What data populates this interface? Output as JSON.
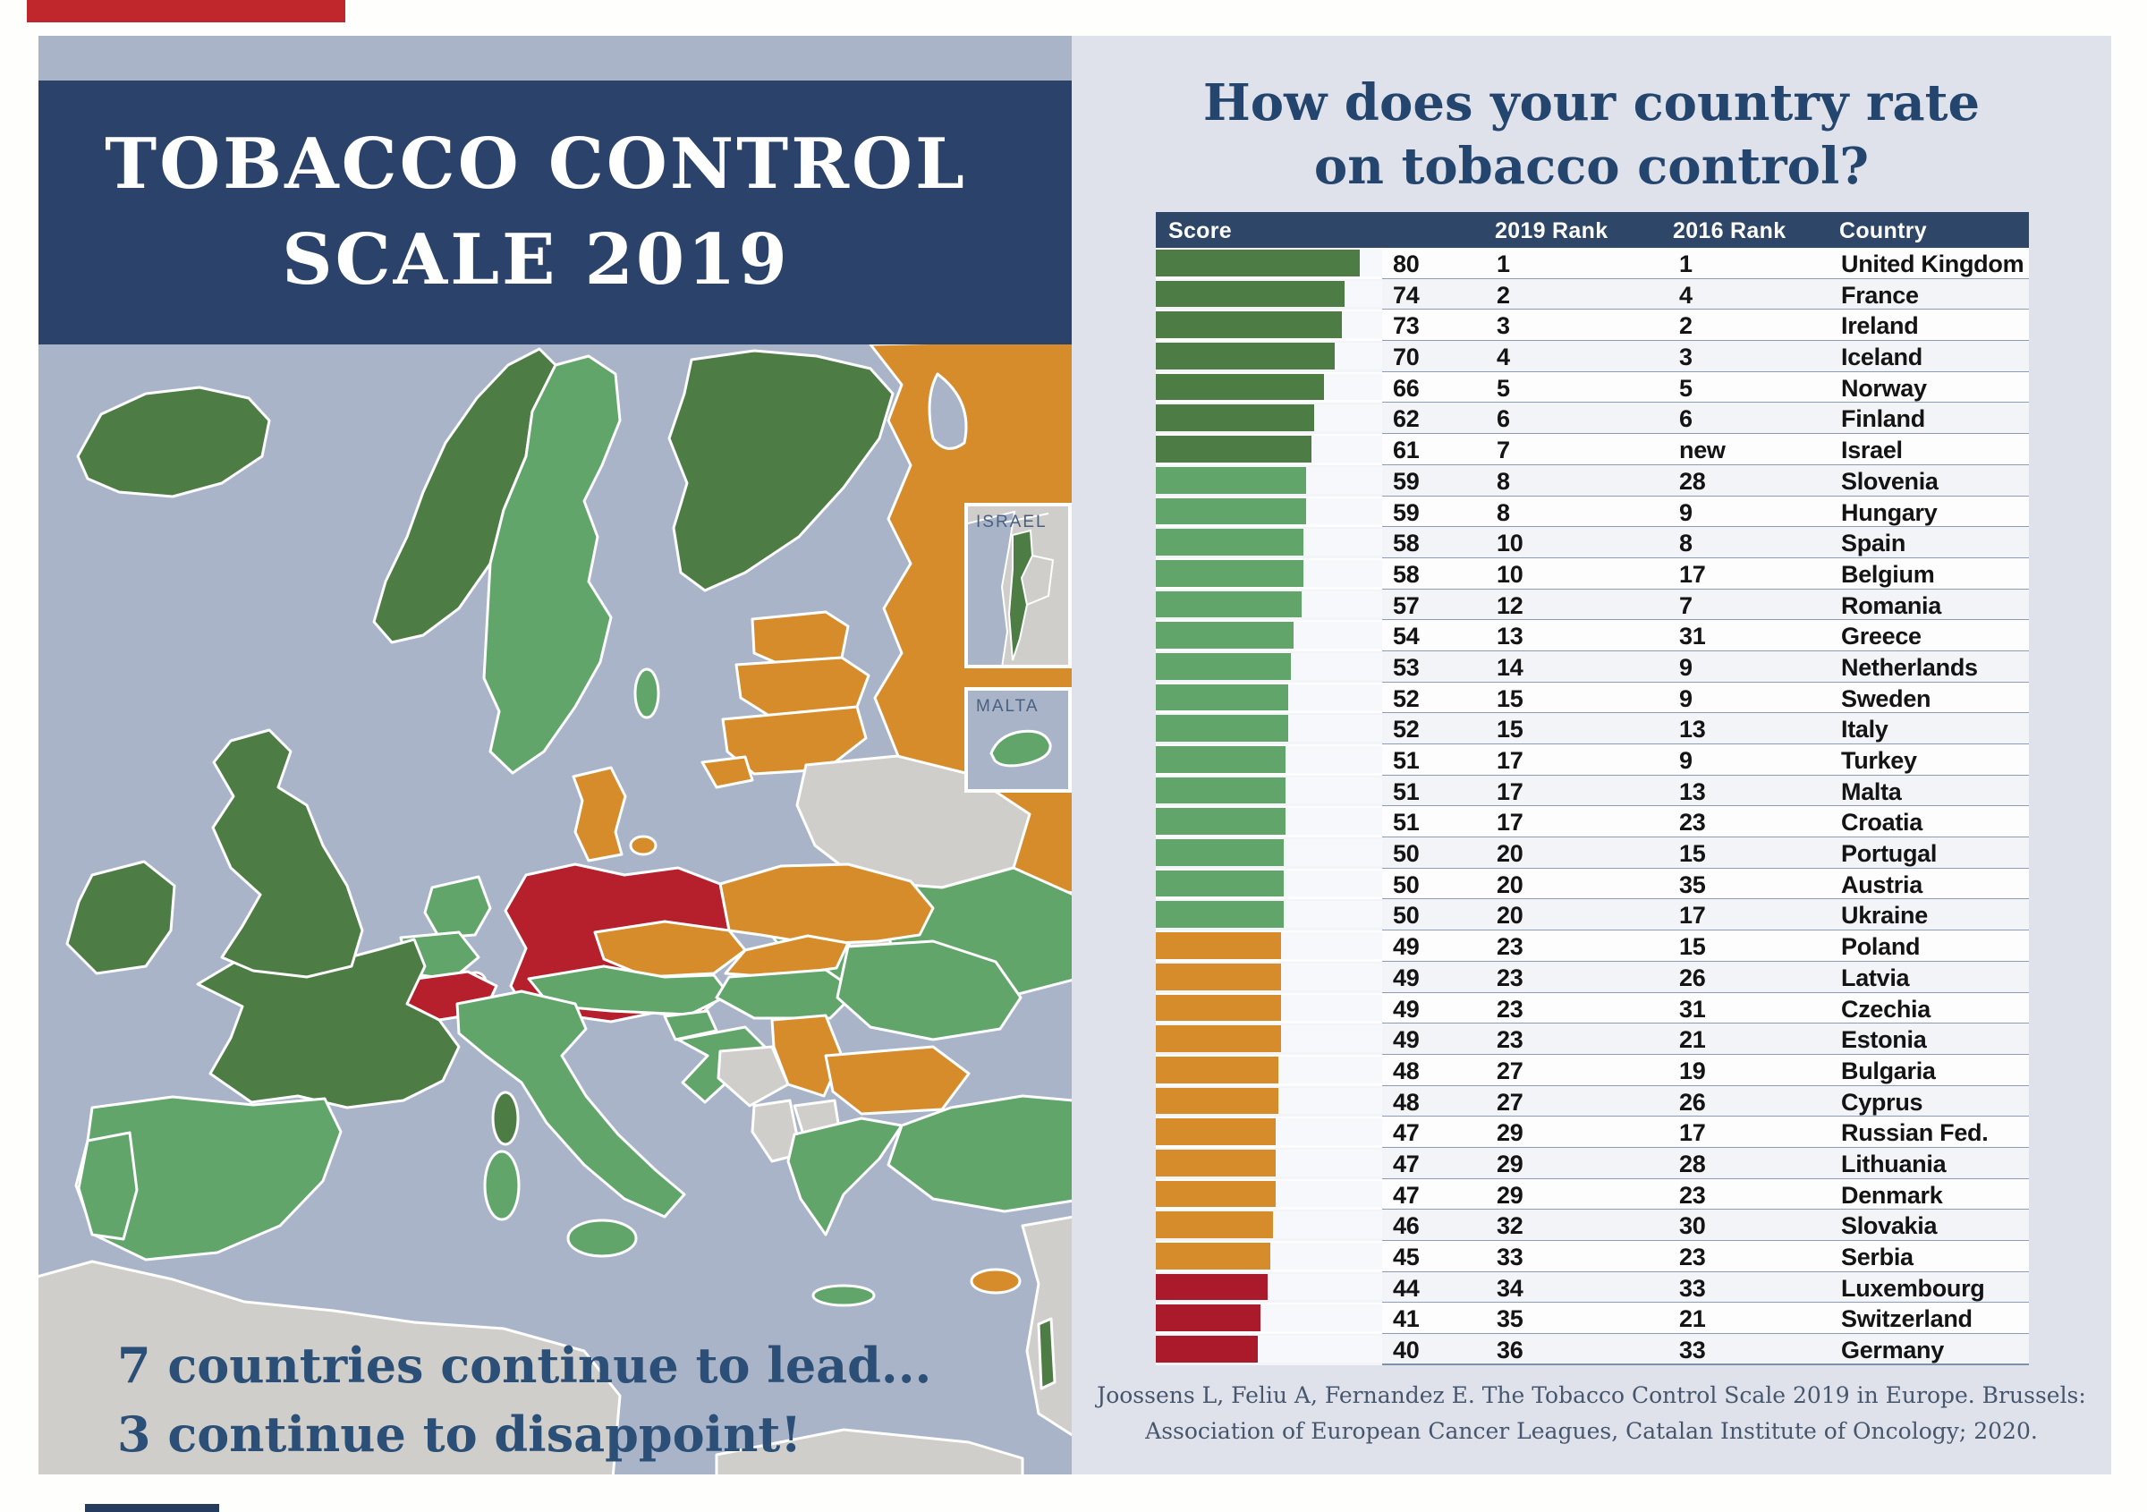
{
  "left_panel": {
    "banner_title_line1": "TOBACCO CONTROL",
    "banner_title_line2": "SCALE 2019",
    "tagline_line1": "7 countries continue to lead...",
    "tagline_line2": "3 continue to disappoint!",
    "inset_israel_label": "ISRAEL",
    "inset_malta_label": "MALTA"
  },
  "right_panel": {
    "title_line1": "How does your country rate",
    "title_line2": "on tobacco control?",
    "citation_line1": "Joossens L, Feliu A, Fernandez E. The Tobacco Control Scale 2019 in Europe. Brussels:",
    "citation_line2": "Association of European Cancer Leagues, Catalan Institute of Oncology; 2020."
  },
  "table": {
    "headers": [
      "Score",
      "2019 Rank",
      "2016 Rank",
      "Country"
    ],
    "rows": [
      {
        "score": 80,
        "rank2019": "1",
        "rank2016": "1",
        "country": "United Kingdom",
        "tier": "leader"
      },
      {
        "score": 74,
        "rank2019": "2",
        "rank2016": "4",
        "country": "France",
        "tier": "leader"
      },
      {
        "score": 73,
        "rank2019": "3",
        "rank2016": "2",
        "country": "Ireland",
        "tier": "leader"
      },
      {
        "score": 70,
        "rank2019": "4",
        "rank2016": "3",
        "country": "Iceland",
        "tier": "leader"
      },
      {
        "score": 66,
        "rank2019": "5",
        "rank2016": "5",
        "country": "Norway",
        "tier": "leader"
      },
      {
        "score": 62,
        "rank2019": "6",
        "rank2016": "6",
        "country": "Finland",
        "tier": "leader"
      },
      {
        "score": 61,
        "rank2019": "7",
        "rank2016": "new",
        "country": "Israel",
        "tier": "leader"
      },
      {
        "score": 59,
        "rank2019": "8",
        "rank2016": "28",
        "country": "Slovenia",
        "tier": "good"
      },
      {
        "score": 59,
        "rank2019": "8",
        "rank2016": "9",
        "country": "Hungary",
        "tier": "good"
      },
      {
        "score": 58,
        "rank2019": "10",
        "rank2016": "8",
        "country": "Spain",
        "tier": "good"
      },
      {
        "score": 58,
        "rank2019": "10",
        "rank2016": "17",
        "country": "Belgium",
        "tier": "good"
      },
      {
        "score": 57,
        "rank2019": "12",
        "rank2016": "7",
        "country": "Romania",
        "tier": "good"
      },
      {
        "score": 54,
        "rank2019": "13",
        "rank2016": "31",
        "country": "Greece",
        "tier": "good"
      },
      {
        "score": 53,
        "rank2019": "14",
        "rank2016": "9",
        "country": "Netherlands",
        "tier": "good"
      },
      {
        "score": 52,
        "rank2019": "15",
        "rank2016": "9",
        "country": "Sweden",
        "tier": "good"
      },
      {
        "score": 52,
        "rank2019": "15",
        "rank2016": "13",
        "country": "Italy",
        "tier": "good"
      },
      {
        "score": 51,
        "rank2019": "17",
        "rank2016": "9",
        "country": "Turkey",
        "tier": "good"
      },
      {
        "score": 51,
        "rank2019": "17",
        "rank2016": "13",
        "country": "Malta",
        "tier": "good"
      },
      {
        "score": 51,
        "rank2019": "17",
        "rank2016": "23",
        "country": "Croatia",
        "tier": "good"
      },
      {
        "score": 50,
        "rank2019": "20",
        "rank2016": "15",
        "country": "Portugal",
        "tier": "good"
      },
      {
        "score": 50,
        "rank2019": "20",
        "rank2016": "35",
        "country": "Austria",
        "tier": "good"
      },
      {
        "score": 50,
        "rank2019": "20",
        "rank2016": "17",
        "country": "Ukraine",
        "tier": "good"
      },
      {
        "score": 49,
        "rank2019": "23",
        "rank2016": "15",
        "country": "Poland",
        "tier": "warn"
      },
      {
        "score": 49,
        "rank2019": "23",
        "rank2016": "26",
        "country": "Latvia",
        "tier": "warn"
      },
      {
        "score": 49,
        "rank2019": "23",
        "rank2016": "31",
        "country": "Czechia",
        "tier": "warn"
      },
      {
        "score": 49,
        "rank2019": "23",
        "rank2016": "21",
        "country": "Estonia",
        "tier": "warn"
      },
      {
        "score": 48,
        "rank2019": "27",
        "rank2016": "19",
        "country": "Bulgaria",
        "tier": "warn"
      },
      {
        "score": 48,
        "rank2019": "27",
        "rank2016": "26",
        "country": "Cyprus",
        "tier": "warn"
      },
      {
        "score": 47,
        "rank2019": "29",
        "rank2016": "17",
        "country": "Russian Fed.",
        "tier": "warn"
      },
      {
        "score": 47,
        "rank2019": "29",
        "rank2016": "28",
        "country": "Lithuania",
        "tier": "warn"
      },
      {
        "score": 47,
        "rank2019": "29",
        "rank2016": "23",
        "country": "Denmark",
        "tier": "warn"
      },
      {
        "score": 46,
        "rank2019": "32",
        "rank2016": "30",
        "country": "Slovakia",
        "tier": "warn"
      },
      {
        "score": 45,
        "rank2019": "33",
        "rank2016": "23",
        "country": "Serbia",
        "tier": "warn"
      },
      {
        "score": 44,
        "rank2019": "34",
        "rank2016": "33",
        "country": "Luxembourg",
        "tier": "bad"
      },
      {
        "score": 41,
        "rank2019": "35",
        "rank2016": "21",
        "country": "Switzerland",
        "tier": "bad"
      },
      {
        "score": 40,
        "rank2019": "36",
        "rank2016": "33",
        "country": "Germany",
        "tier": "bad"
      }
    ]
  },
  "colors": {
    "leader_dark_green": "#4d7c44",
    "good_green": "#61a56b",
    "warn_orange": "#d78c2b",
    "bad_red": "#ab1a2a",
    "banner_navy": "#2b436a",
    "table_header_navy": "#2e4667",
    "title_navy": "#24466e",
    "sea_blue": "#a9b4c8",
    "land_gray": "#cfcecb",
    "right_panel_bg": "#dfe2eb"
  },
  "chart_data": {
    "type": "bar",
    "title": "How does your country rate on tobacco control?",
    "xlabel": "Score",
    "ylabel": "Country",
    "xlim": [
      0,
      80
    ],
    "orientation": "horizontal",
    "grid": false,
    "legend_position": "none",
    "categories": [
      "United Kingdom",
      "France",
      "Ireland",
      "Iceland",
      "Norway",
      "Finland",
      "Israel",
      "Slovenia",
      "Hungary",
      "Spain",
      "Belgium",
      "Romania",
      "Greece",
      "Netherlands",
      "Sweden",
      "Italy",
      "Turkey",
      "Malta",
      "Croatia",
      "Portugal",
      "Austria",
      "Ukraine",
      "Poland",
      "Latvia",
      "Czechia",
      "Estonia",
      "Bulgaria",
      "Cyprus",
      "Russian Fed.",
      "Lithuania",
      "Denmark",
      "Slovakia",
      "Serbia",
      "Luxembourg",
      "Switzerland",
      "Germany"
    ],
    "values": [
      80,
      74,
      73,
      70,
      66,
      62,
      61,
      59,
      59,
      58,
      58,
      57,
      54,
      53,
      52,
      52,
      51,
      51,
      51,
      50,
      50,
      50,
      49,
      49,
      49,
      49,
      48,
      48,
      47,
      47,
      47,
      46,
      45,
      44,
      41,
      40
    ],
    "series": [
      {
        "name": "Score",
        "values": [
          80,
          74,
          73,
          70,
          66,
          62,
          61,
          59,
          59,
          58,
          58,
          57,
          54,
          53,
          52,
          52,
          51,
          51,
          51,
          50,
          50,
          50,
          49,
          49,
          49,
          49,
          48,
          48,
          47,
          47,
          47,
          46,
          45,
          44,
          41,
          40
        ]
      },
      {
        "name": "2019 Rank",
        "values": [
          "1",
          "2",
          "3",
          "4",
          "5",
          "6",
          "7",
          "8",
          "8",
          "10",
          "10",
          "12",
          "13",
          "14",
          "15",
          "15",
          "17",
          "17",
          "17",
          "20",
          "20",
          "20",
          "23",
          "23",
          "23",
          "23",
          "27",
          "27",
          "29",
          "29",
          "29",
          "32",
          "33",
          "34",
          "35",
          "36"
        ]
      },
      {
        "name": "2016 Rank",
        "values": [
          "1",
          "4",
          "2",
          "3",
          "5",
          "6",
          "new",
          "28",
          "9",
          "8",
          "17",
          "7",
          "31",
          "9",
          "9",
          "13",
          "9",
          "13",
          "23",
          "15",
          "35",
          "17",
          "15",
          "26",
          "31",
          "21",
          "19",
          "26",
          "17",
          "28",
          "23",
          "30",
          "23",
          "33",
          "21",
          "33"
        ]
      }
    ]
  }
}
